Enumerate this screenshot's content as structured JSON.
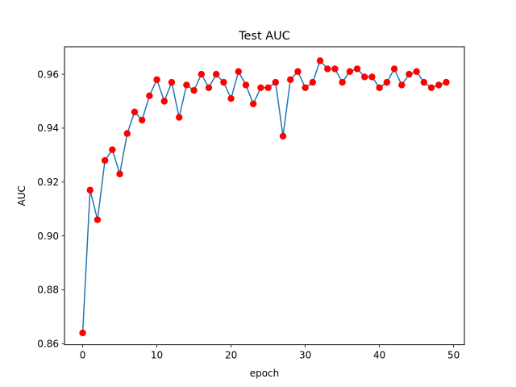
{
  "chart_data": {
    "type": "line",
    "title": "Test AUC",
    "xlabel": "epoch",
    "ylabel": "AUC",
    "xlim": [
      -2.45,
      51.45
    ],
    "ylim": [
      0.8596,
      0.9702
    ],
    "xticks": [
      0,
      10,
      20,
      30,
      40,
      50
    ],
    "xtick_labels": [
      "0",
      "10",
      "20",
      "30",
      "40",
      "50"
    ],
    "yticks": [
      0.86,
      0.88,
      0.9,
      0.92,
      0.94,
      0.96
    ],
    "ytick_labels": [
      "0.86",
      "0.88",
      "0.90",
      "0.92",
      "0.94",
      "0.96"
    ],
    "grid": false,
    "legend": "none",
    "line_color": "#1f77b4",
    "marker_color": "#ff0000",
    "series": [
      {
        "x": [
          0,
          1,
          2,
          3,
          4,
          5,
          6,
          7,
          8,
          9,
          10,
          11,
          12,
          13,
          14,
          15,
          16,
          17,
          18,
          19,
          20,
          21,
          22,
          23,
          24,
          25,
          26,
          27,
          28,
          29,
          30,
          31,
          32,
          33,
          34,
          35,
          36,
          37,
          38,
          39,
          40,
          41,
          42,
          43,
          44,
          45,
          46,
          47,
          48,
          49
        ],
        "values": [
          0.864,
          0.917,
          0.906,
          0.928,
          0.932,
          0.923,
          0.938,
          0.946,
          0.943,
          0.952,
          0.958,
          0.95,
          0.957,
          0.944,
          0.956,
          0.954,
          0.96,
          0.955,
          0.96,
          0.957,
          0.951,
          0.961,
          0.956,
          0.949,
          0.955,
          0.955,
          0.957,
          0.937,
          0.958,
          0.961,
          0.955,
          0.957,
          0.965,
          0.962,
          0.962,
          0.957,
          0.961,
          0.962,
          0.959,
          0.959,
          0.955,
          0.957,
          0.962,
          0.956,
          0.96,
          0.961,
          0.957,
          0.955,
          0.956,
          0.957
        ]
      }
    ]
  }
}
